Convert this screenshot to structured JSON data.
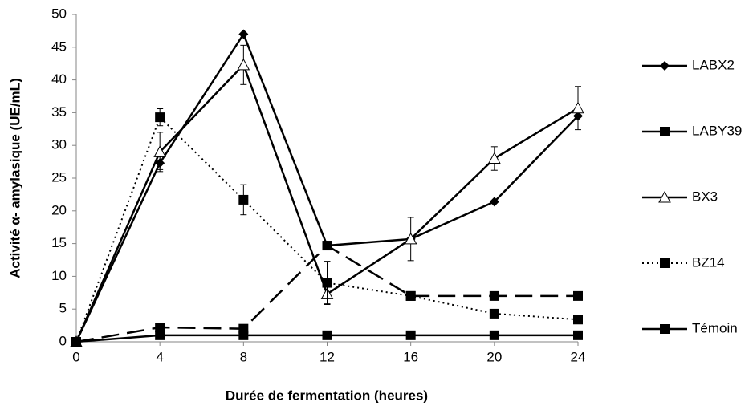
{
  "chart_data": {
    "type": "line",
    "x_label": "Durée de fermentation (heures)",
    "y_label": "Activité α- amylasique (UE/mL)",
    "x": [
      0,
      4,
      8,
      12,
      16,
      20,
      24
    ],
    "xlim": [
      0,
      24
    ],
    "xticks": [
      0,
      4,
      8,
      12,
      16,
      20,
      24
    ],
    "ylim": [
      0,
      50
    ],
    "yticks": [
      0,
      5,
      10,
      15,
      20,
      25,
      30,
      35,
      40,
      45,
      50
    ],
    "grid": false,
    "legend": "right",
    "series": [
      {
        "name": "LABX2",
        "color": "#000000",
        "marker": "diamond",
        "dash": "solid",
        "values": [
          0,
          27.3,
          47,
          14.7,
          15.7,
          21.4,
          34.5
        ],
        "errors": [
          null,
          1,
          null,
          null,
          null,
          null,
          null
        ]
      },
      {
        "name": "LABY39",
        "color": "#000000",
        "marker": "square",
        "dash": "dashed",
        "values": [
          0,
          2.2,
          2,
          14.7,
          7,
          7,
          7
        ],
        "errors": [
          null,
          null,
          null,
          null,
          null,
          null,
          null
        ]
      },
      {
        "name": "BX3",
        "color": "#000000",
        "marker": "triangle",
        "dash": "solid",
        "values": [
          0,
          29,
          42.3,
          7.3,
          15.7,
          28,
          35.7
        ],
        "errors": [
          null,
          3,
          3,
          1.5,
          3.3,
          1.8,
          3.3
        ]
      },
      {
        "name": "BZ14",
        "color": "#000000",
        "marker": "square",
        "dash": "dotted",
        "values": [
          0,
          34.3,
          21.7,
          9,
          7,
          4.3,
          3.4
        ],
        "errors": [
          null,
          1.3,
          2.3,
          3.3,
          null,
          null,
          null
        ]
      },
      {
        "name": "Témoin",
        "color": "#000000",
        "marker": "square",
        "dash": "solid",
        "values": [
          0,
          1,
          1,
          1,
          1,
          1,
          1
        ],
        "errors": [
          null,
          null,
          null,
          null,
          null,
          null,
          null
        ]
      }
    ]
  }
}
